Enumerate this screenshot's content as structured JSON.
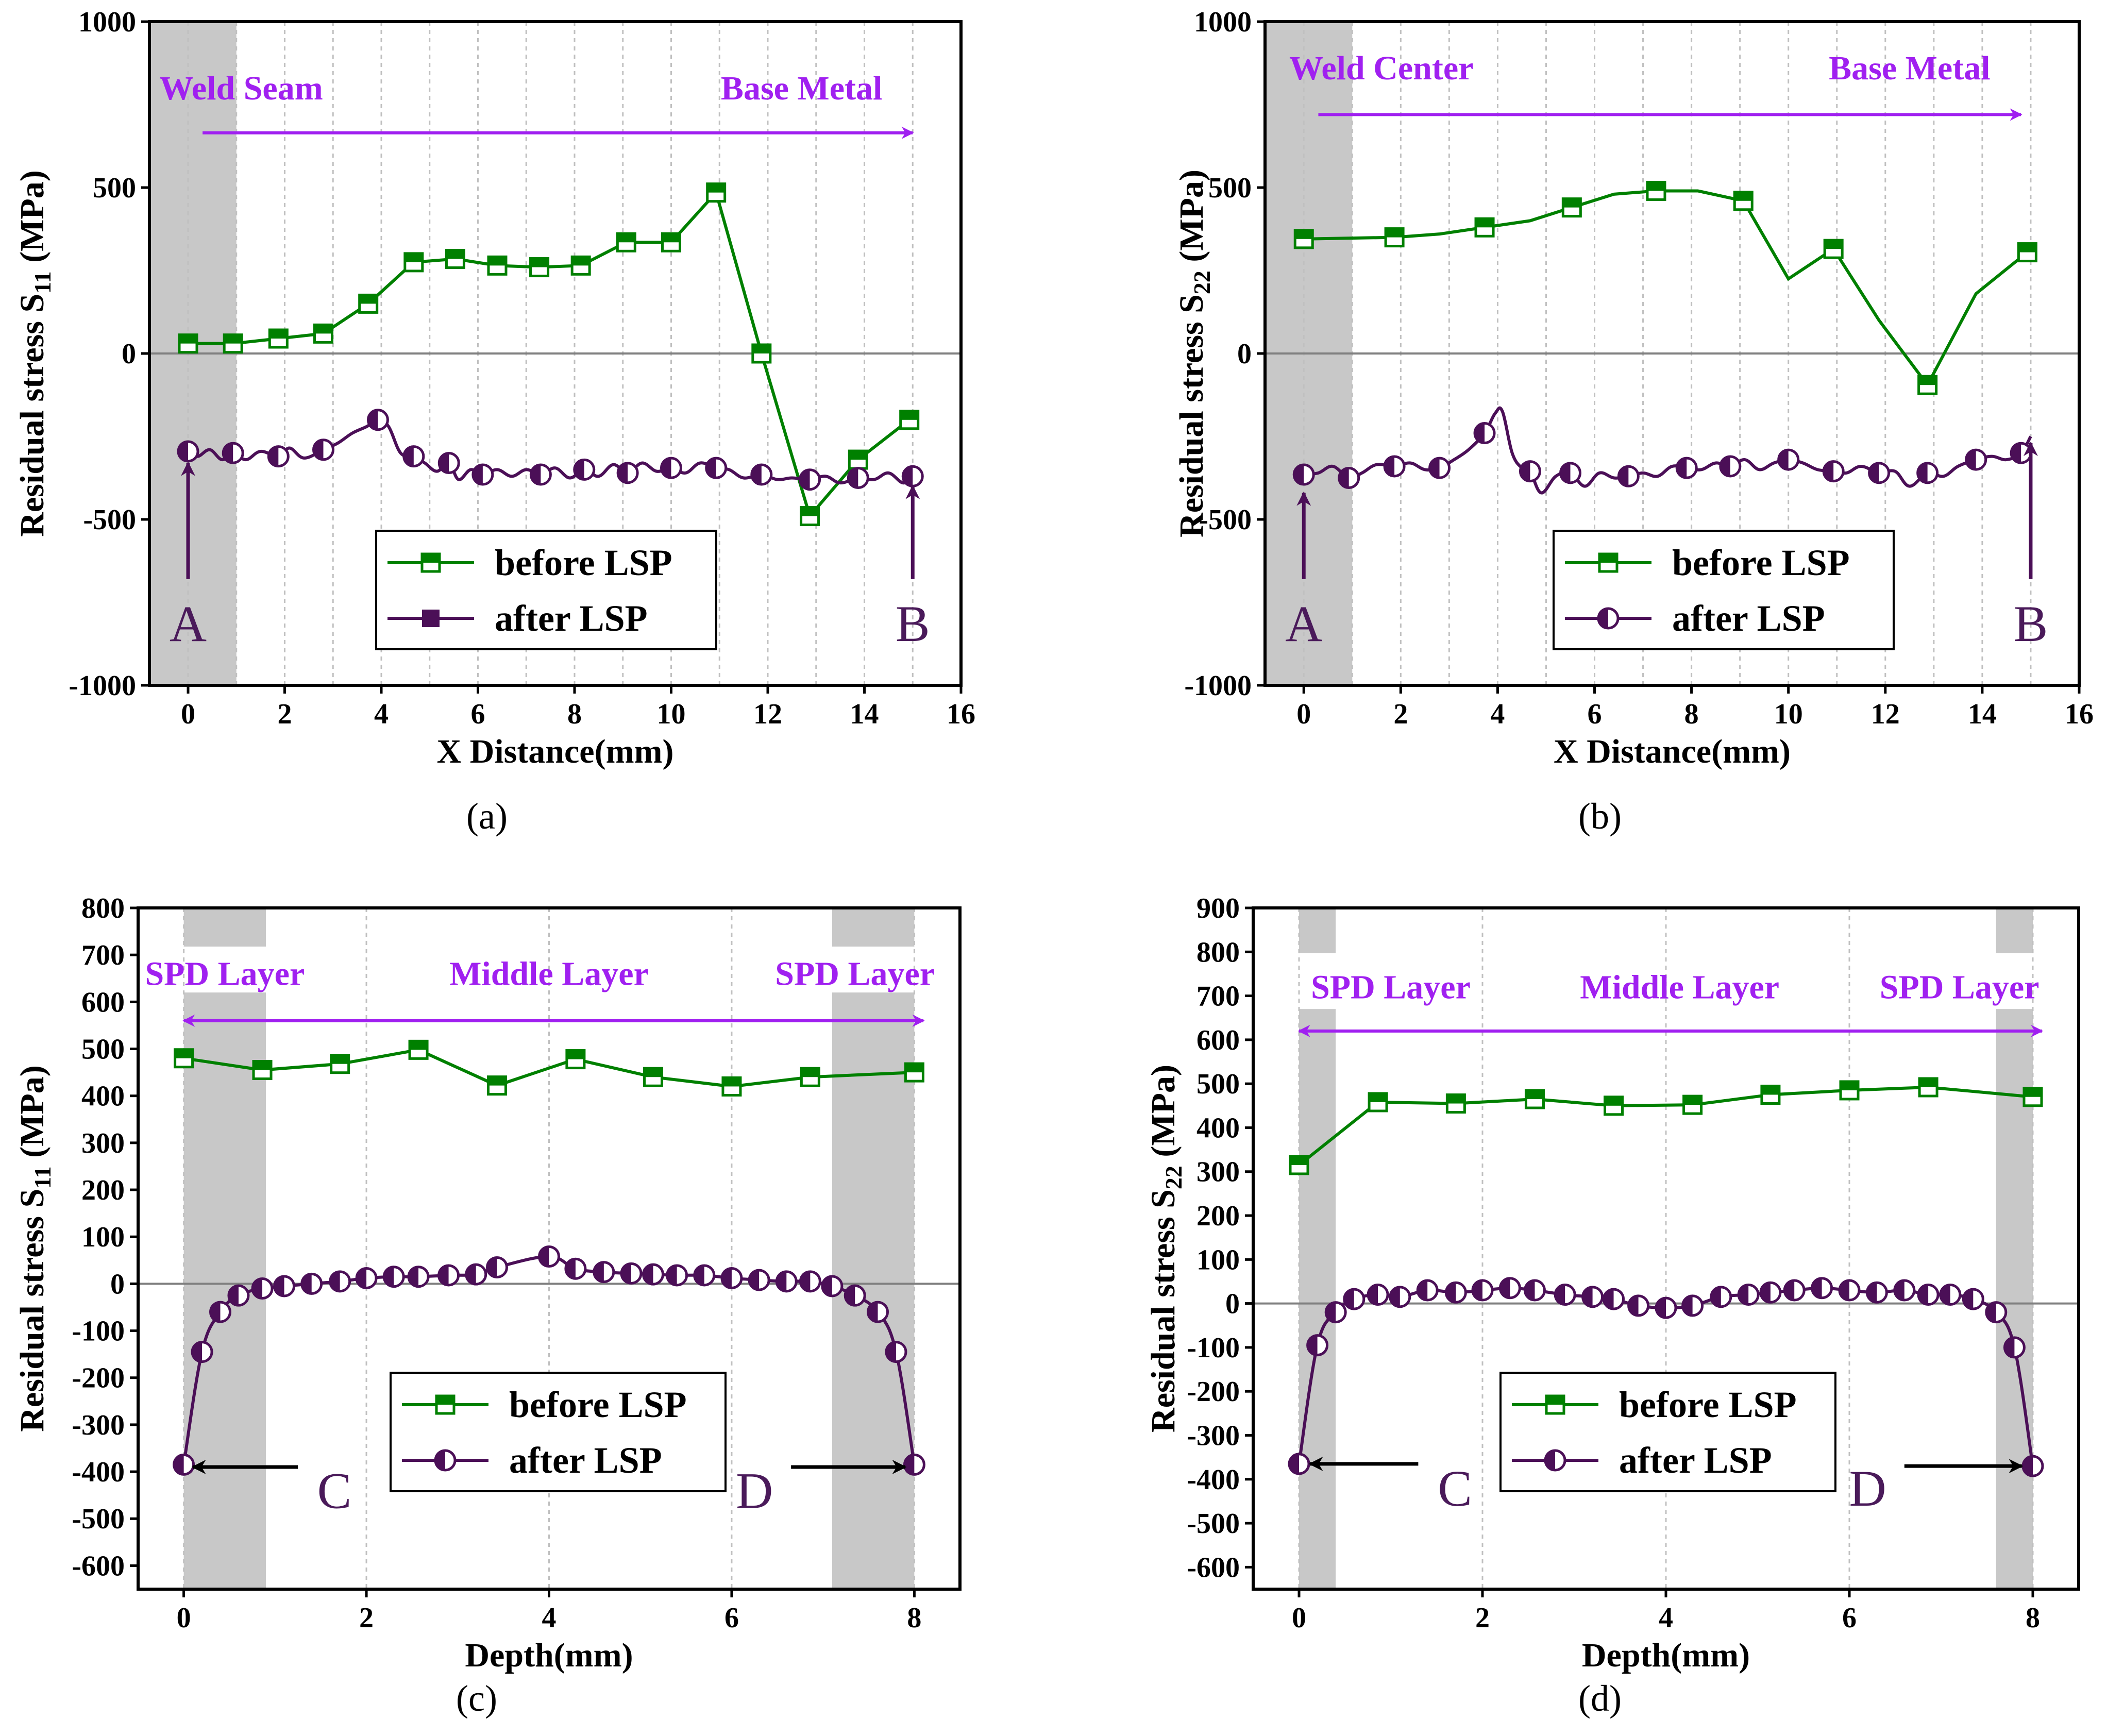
{
  "colors": {
    "before": "#008000",
    "after": "#4b0f57",
    "region_text": "#a020f0",
    "arrow": "#a020f0",
    "shade": "#c8c8c8",
    "zero_line": "#808080",
    "grid": "#c0c0c0"
  },
  "chart_data": [
    {
      "type": "line",
      "panel": "a",
      "caption": "(a)",
      "xlabel": "X Distance(mm)",
      "ylabel": "Residual stress S",
      "ylabel_sub": "11",
      "ylabel_unit": " (MPa)",
      "xlim": [
        -0.8,
        16
      ],
      "ylim": [
        -1000,
        1000
      ],
      "xticks": [
        0,
        2,
        4,
        6,
        8,
        10,
        12,
        14,
        16
      ],
      "yticks": [
        -1000,
        -500,
        0,
        500,
        1000
      ],
      "shade": [
        [
          -0.8,
          1.0
        ]
      ],
      "regions": [
        {
          "text": "Weld Seam",
          "x": 1.1,
          "y": 800
        },
        {
          "text": "Base Metal",
          "x": 12.7,
          "y": 800
        }
      ],
      "arrow": {
        "x1": 0.3,
        "x2": 15.0,
        "y": 665,
        "double": false
      },
      "point_labels": [
        {
          "text": "A",
          "x": 0,
          "y": -820,
          "arrow_from_y": -680,
          "arrow_to_y": -330
        },
        {
          "text": "B",
          "x": 15,
          "y": -820,
          "arrow_from_y": -680,
          "arrow_to_y": -400
        }
      ],
      "legend": {
        "position": "lower-center",
        "items": [
          "before LSP",
          "after LSP"
        ],
        "after_marker": "square"
      },
      "series": [
        {
          "name": "before LSP",
          "x": [
            0,
            0.93,
            1.87,
            2.8,
            3.73,
            4.67,
            5.53,
            6.4,
            7.27,
            8.13,
            9.07,
            10,
            10.93,
            11.87,
            12.87,
            13.87,
            14.93
          ],
          "y": [
            30,
            30,
            45,
            60,
            150,
            275,
            285,
            265,
            260,
            265,
            335,
            335,
            485,
            0,
            -490,
            -320,
            -200
          ],
          "marker": "square-half"
        },
        {
          "name": "after LSP",
          "x": [
            0,
            0.2,
            0.45,
            0.7,
            0.93,
            1.2,
            1.5,
            1.87,
            2.1,
            2.4,
            2.8,
            3.1,
            3.4,
            3.7,
            3.93,
            4.15,
            4.4,
            4.67,
            4.9,
            5.15,
            5.4,
            5.6,
            5.85,
            6.1,
            6.4,
            6.7,
            7.0,
            7.3,
            7.6,
            7.9,
            8.2,
            8.5,
            8.8,
            9.1,
            9.4,
            9.7,
            10.0,
            10.3,
            10.6,
            10.93,
            11.2,
            11.5,
            11.87,
            12.2,
            12.5,
            12.87,
            13.2,
            13.5,
            13.87,
            14.2,
            14.5,
            14.8,
            15.0
          ],
          "y": [
            -295,
            -310,
            -290,
            -320,
            -300,
            -320,
            -295,
            -310,
            -285,
            -315,
            -290,
            -270,
            -240,
            -220,
            -200,
            -220,
            -300,
            -310,
            -330,
            -355,
            -330,
            -380,
            -350,
            -365,
            -350,
            -370,
            -350,
            -365,
            -345,
            -375,
            -350,
            -370,
            -335,
            -360,
            -330,
            -355,
            -345,
            -360,
            -330,
            -345,
            -350,
            -375,
            -365,
            -380,
            -375,
            -380,
            -370,
            -390,
            -375,
            -380,
            -360,
            -390,
            -370
          ],
          "marker": "circle-half",
          "marker_idx": [
            0,
            4,
            7,
            10,
            14,
            17,
            20,
            23,
            27,
            30,
            33,
            36,
            39,
            42,
            45,
            48,
            52
          ]
        }
      ]
    },
    {
      "type": "line",
      "panel": "b",
      "caption": "(b)",
      "xlabel": "X Distance(mm)",
      "ylabel": "Residual stress S",
      "ylabel_sub": "22",
      "ylabel_unit": " (MPa)",
      "xlim": [
        -0.8,
        16
      ],
      "ylim": [
        -1000,
        1000
      ],
      "xticks": [
        0,
        2,
        4,
        6,
        8,
        10,
        12,
        14,
        16
      ],
      "yticks": [
        -1000,
        -500,
        0,
        500,
        1000
      ],
      "shade": [
        [
          -0.8,
          1.0
        ]
      ],
      "regions": [
        {
          "text": "Weld Center",
          "x": 1.6,
          "y": 860
        },
        {
          "text": "Base Metal",
          "x": 12.5,
          "y": 860
        }
      ],
      "arrow": {
        "x1": 0.3,
        "x2": 14.8,
        "y": 720,
        "double": false
      },
      "point_labels": [
        {
          "text": "A",
          "x": 0,
          "y": -820,
          "arrow_from_y": -680,
          "arrow_to_y": -420
        },
        {
          "text": "B",
          "x": 15,
          "y": -820,
          "arrow_from_y": -680,
          "arrow_to_y": -270
        }
      ],
      "legend": {
        "position": "lower-center",
        "items": [
          "before LSP",
          "after LSP"
        ],
        "after_marker": "circle-half"
      },
      "series": [
        {
          "name": "before LSP",
          "x": [
            0,
            1.87,
            2.8,
            3.73,
            4.67,
            5.53,
            6.4,
            7.27,
            8.13,
            9.07,
            10,
            10.93,
            11.87,
            12.87,
            13.87,
            14.93
          ],
          "y": [
            345,
            350,
            360,
            380,
            400,
            440,
            480,
            490,
            490,
            460,
            225,
            315,
            100,
            -95,
            180,
            305
          ],
          "marker": "square-half",
          "marker_idx": [
            0,
            1,
            3,
            5,
            7,
            9,
            11,
            13,
            15
          ]
        },
        {
          "name": "after LSP",
          "x": [
            0,
            0.3,
            0.6,
            0.93,
            1.2,
            1.5,
            1.87,
            2.2,
            2.5,
            2.8,
            3.1,
            3.4,
            3.73,
            3.95,
            4.1,
            4.3,
            4.5,
            4.67,
            4.9,
            5.2,
            5.5,
            5.8,
            6.1,
            6.4,
            6.7,
            7.0,
            7.3,
            7.6,
            7.9,
            8.2,
            8.5,
            8.8,
            9.1,
            9.4,
            9.7,
            10.0,
            10.3,
            10.6,
            10.93,
            11.2,
            11.5,
            11.87,
            12.2,
            12.5,
            12.87,
            13.2,
            13.5,
            13.87,
            14.2,
            14.5,
            14.8,
            15.0
          ],
          "y": [
            -365,
            -360,
            -340,
            -375,
            -360,
            -335,
            -340,
            -330,
            -350,
            -345,
            -320,
            -290,
            -240,
            -180,
            -175,
            -300,
            -345,
            -355,
            -420,
            -370,
            -360,
            -400,
            -360,
            -375,
            -370,
            -360,
            -370,
            -340,
            -345,
            -350,
            -330,
            -340,
            -320,
            -350,
            -330,
            -320,
            -330,
            -350,
            -355,
            -360,
            -340,
            -360,
            -355,
            -400,
            -360,
            -370,
            -340,
            -320,
            -310,
            -320,
            -300,
            -250
          ],
          "marker": "circle-half",
          "marker_idx": [
            0,
            3,
            6,
            9,
            12,
            17,
            20,
            24,
            28,
            31,
            35,
            38,
            41,
            44,
            47,
            50
          ]
        }
      ]
    },
    {
      "type": "line",
      "panel": "c",
      "caption": "(c)",
      "xlabel": "Depth(mm)",
      "ylabel": "Residual stress S",
      "ylabel_sub": "11",
      "ylabel_unit": " (MPa)",
      "xlim": [
        -0.5,
        8.5
      ],
      "ylim": [
        -650,
        800
      ],
      "xticks": [
        0,
        2,
        4,
        6,
        8
      ],
      "yticks": [
        -600,
        -500,
        -400,
        -300,
        -200,
        -100,
        0,
        100,
        200,
        300,
        400,
        500,
        600,
        700,
        800
      ],
      "shade": [
        [
          0,
          0.9
        ],
        [
          7.1,
          8.0
        ]
      ],
      "shade_gap": [
        620,
        720
      ],
      "regions": [
        {
          "text": "SPD Layer",
          "x": 0.45,
          "y": 660
        },
        {
          "text": "Middle Layer",
          "x": 4.0,
          "y": 660
        },
        {
          "text": "SPD Layer",
          "x": 7.35,
          "y": 660
        }
      ],
      "arrow": {
        "x1": 0.0,
        "x2": 8.1,
        "y": 560,
        "double": true
      },
      "point_labels": [
        {
          "text": "C",
          "x": 1.65,
          "y": -440,
          "arrow_from_x": 1.25,
          "arrow_to_x": 0.1,
          "arrow_y": -390
        },
        {
          "text": "D",
          "x": 6.25,
          "y": -440,
          "arrow_from_x": 6.65,
          "arrow_to_x": 7.9,
          "arrow_y": -390
        }
      ],
      "legend": {
        "position": "lower-center",
        "items": [
          "before LSP",
          "after LSP"
        ],
        "after_marker": "circle-half"
      },
      "series": [
        {
          "name": "before LSP",
          "x": [
            0,
            0.86,
            1.71,
            2.57,
            3.43,
            4.29,
            5.14,
            6.0,
            6.86,
            8.0
          ],
          "y": [
            480,
            455,
            468,
            498,
            422,
            478,
            440,
            420,
            440,
            450
          ],
          "marker": "square-half"
        },
        {
          "name": "after LSP",
          "x": [
            0,
            0.2,
            0.4,
            0.6,
            0.86,
            1.1,
            1.4,
            1.71,
            2.0,
            2.3,
            2.57,
            2.9,
            3.2,
            3.43,
            4.0,
            4.29,
            4.6,
            4.9,
            5.14,
            5.4,
            5.7,
            6.0,
            6.3,
            6.6,
            6.86,
            7.1,
            7.35,
            7.6,
            7.8,
            8.0
          ],
          "y": [
            -385,
            -145,
            -60,
            -25,
            -10,
            -5,
            0,
            5,
            12,
            15,
            15,
            18,
            20,
            35,
            58,
            32,
            25,
            22,
            20,
            18,
            18,
            12,
            8,
            5,
            5,
            -5,
            -25,
            -60,
            -145,
            -385
          ],
          "marker": "circle-half"
        }
      ]
    },
    {
      "type": "line",
      "panel": "d",
      "caption": "(d)",
      "xlabel": "Depth(mm)",
      "ylabel": "Residual stress S",
      "ylabel_sub": "22",
      "ylabel_unit": " (MPa)",
      "xlim": [
        -0.5,
        8.5
      ],
      "ylim": [
        -650,
        900
      ],
      "xticks": [
        0,
        2,
        4,
        6,
        8
      ],
      "yticks": [
        -600,
        -500,
        -400,
        -300,
        -200,
        -100,
        0,
        100,
        200,
        300,
        400,
        500,
        600,
        700,
        800,
        900
      ],
      "shade": [
        [
          0,
          0.4
        ],
        [
          7.6,
          8.0
        ]
      ],
      "shade_gap": [
        670,
        800
      ],
      "regions": [
        {
          "text": "SPD Layer",
          "x": 1.0,
          "y": 720
        },
        {
          "text": "Middle Layer",
          "x": 4.15,
          "y": 720
        },
        {
          "text": "SPD Layer",
          "x": 7.2,
          "y": 720
        }
      ],
      "arrow": {
        "x1": 0.0,
        "x2": 8.1,
        "y": 620,
        "double": true
      },
      "point_labels": [
        {
          "text": "C",
          "x": 1.7,
          "y": -420,
          "arrow_from_x": 1.3,
          "arrow_to_x": 0.12,
          "arrow_y": -365
        },
        {
          "text": "D",
          "x": 6.2,
          "y": -420,
          "arrow_from_x": 6.6,
          "arrow_to_x": 7.88,
          "arrow_y": -370
        }
      ],
      "legend": {
        "position": "lower-center",
        "items": [
          "before LSP",
          "after LSP"
        ],
        "after_marker": "circle-half"
      },
      "series": [
        {
          "name": "before LSP",
          "x": [
            0,
            0.86,
            1.71,
            2.57,
            3.43,
            4.29,
            5.14,
            6.0,
            6.86,
            8.0
          ],
          "y": [
            315,
            458,
            455,
            465,
            450,
            452,
            475,
            485,
            492,
            470
          ],
          "marker": "square-half"
        },
        {
          "name": "after LSP",
          "x": [
            0,
            0.2,
            0.4,
            0.6,
            0.86,
            1.1,
            1.4,
            1.71,
            2.0,
            2.3,
            2.57,
            2.9,
            3.2,
            3.43,
            3.7,
            4.0,
            4.29,
            4.6,
            4.9,
            5.14,
            5.4,
            5.7,
            6.0,
            6.3,
            6.6,
            6.86,
            7.1,
            7.35,
            7.6,
            7.8,
            8.0
          ],
          "y": [
            -365,
            -95,
            -20,
            10,
            20,
            15,
            30,
            25,
            30,
            35,
            30,
            20,
            15,
            10,
            -5,
            -10,
            -5,
            15,
            20,
            25,
            30,
            35,
            30,
            25,
            30,
            20,
            20,
            10,
            -20,
            -100,
            -370
          ],
          "marker": "circle-half"
        }
      ]
    }
  ]
}
